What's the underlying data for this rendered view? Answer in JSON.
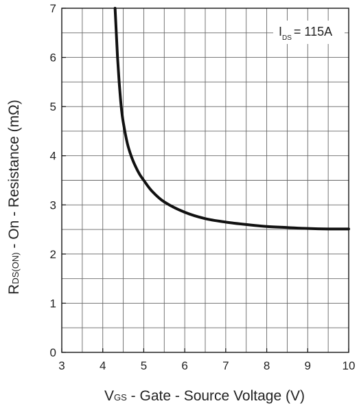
{
  "chart_data": {
    "type": "line",
    "annotation": {
      "prefix": "I",
      "subscript": "DS",
      "suffix": "= 115A"
    },
    "ylabel": {
      "prefix": "R",
      "subscript": "DS(ON)",
      "suffix": " - On - Resistance (mΩ)"
    },
    "xlabel": {
      "prefix": "V",
      "subscript": "GS",
      "suffix": " - Gate - Source Voltage (V)"
    },
    "xlim": [
      3,
      10
    ],
    "ylim": [
      0,
      7
    ],
    "x_ticks": [
      3,
      4,
      5,
      6,
      7,
      8,
      9,
      10
    ],
    "y_ticks": [
      0,
      1,
      2,
      3,
      4,
      5,
      6,
      7
    ],
    "minor_grid_x_step": 0.5,
    "minor_grid_y_step": 0.5,
    "grid": true,
    "series": [
      {
        "color": "#111111",
        "x": [
          4.3,
          4.33,
          4.36,
          4.4,
          4.45,
          4.5,
          4.6,
          4.7,
          4.8,
          4.9,
          5.0,
          5.2,
          5.5,
          6.0,
          6.5,
          7.0,
          7.5,
          8.0,
          8.5,
          9.0,
          9.5,
          10.0
        ],
        "y": [
          7.0,
          6.5,
          6.0,
          5.5,
          5.0,
          4.68,
          4.25,
          3.98,
          3.78,
          3.62,
          3.5,
          3.28,
          3.06,
          2.85,
          2.72,
          2.65,
          2.6,
          2.56,
          2.54,
          2.52,
          2.51,
          2.51
        ]
      }
    ]
  }
}
